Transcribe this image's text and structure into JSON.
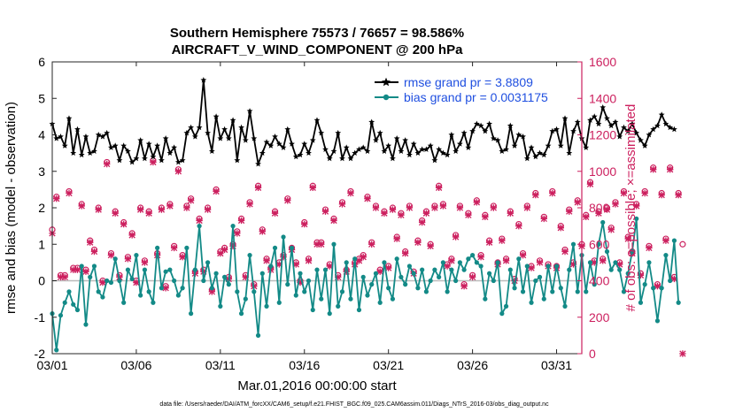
{
  "chart_data": {
    "type": "line",
    "title": "Southern Hemisphere 75573 / 76657 = 98.586%",
    "subtitle": "AIRCRAFT_V_WIND_COMPONENT @ 200 hPa",
    "xlabel": "Mar.01,2016 00:00:00 start",
    "ylabel": "rmse and bias (model - observation)",
    "y2label": "# of obs: o=possible; ×=assimilated",
    "footer": "data file: /Users/raeder/DAI/ATM_forcXX/CAM6_setup/f.e21.FHIST_BGC.f09_025.CAM6assim.011/Diags_NTrS_2016-03/obs_diag_output.nc",
    "xlim": [
      0,
      31.5
    ],
    "ylim": [
      -2,
      6
    ],
    "y2lim": [
      0,
      1600
    ],
    "x_ticks": [
      0,
      5,
      10,
      15,
      20,
      25,
      30
    ],
    "x_tick_labels": [
      "03/01",
      "03/06",
      "03/11",
      "03/16",
      "03/21",
      "03/26",
      "03/31"
    ],
    "y_ticks": [
      -2,
      -1,
      0,
      1,
      2,
      3,
      4,
      5,
      6
    ],
    "y_tick_labels": [
      "-2",
      "-1",
      "0",
      "1",
      "2",
      "3",
      "4",
      "5",
      "6"
    ],
    "y2_ticks": [
      0,
      200,
      400,
      600,
      800,
      1000,
      1200,
      1400,
      1600
    ],
    "y2_tick_labels": [
      "0",
      "200",
      "400",
      "600",
      "800",
      "1000",
      "1200",
      "1400",
      "1600"
    ],
    "x_step_days": 0.25,
    "zero_line": 0,
    "legend_position": "top-right",
    "colors": {
      "rmse": "#000000",
      "bias": "#138a87",
      "counts": "#cc1f5e",
      "legend_text": "#1f4fe0",
      "axis": "#262626",
      "zero_line": "#bbbbbb"
    },
    "series": [
      {
        "name": "rmse grand pr = 3.8809",
        "axis": "left",
        "values": [
          4.3,
          3.9,
          3.95,
          3.7,
          4.45,
          3.5,
          4.15,
          3.45,
          3.95,
          3.5,
          3.55,
          4.0,
          3.95,
          4.05,
          3.65,
          3.7,
          3.3,
          3.7,
          3.55,
          3.25,
          3.35,
          3.85,
          3.35,
          3.75,
          3.4,
          3.7,
          3.3,
          3.9,
          3.5,
          3.65,
          3.25,
          3.3,
          4.05,
          4.2,
          3.95,
          4.2,
          5.5,
          4.05,
          3.55,
          4.5,
          3.9,
          4.15,
          3.9,
          4.4,
          3.3,
          4.2,
          3.85,
          4.65,
          3.9,
          3.2,
          3.5,
          3.8,
          3.7,
          3.95,
          3.75,
          3.65,
          4.15,
          3.75,
          3.4,
          3.45,
          3.75,
          3.5,
          3.85,
          4.4,
          4.05,
          3.6,
          3.35,
          3.55,
          4.05,
          3.35,
          3.65,
          3.35,
          3.5,
          3.6,
          3.65,
          3.55,
          4.35,
          3.85,
          4.05,
          3.55,
          3.7,
          3.35,
          3.9,
          3.55,
          3.85,
          3.45,
          3.75,
          3.5,
          3.6,
          3.6,
          3.7,
          3.3,
          3.6,
          3.5,
          3.45,
          4.0,
          3.55,
          3.75,
          4.05,
          3.65,
          4.1,
          4.3,
          4.25,
          4.1,
          4.3,
          3.9,
          3.85,
          3.55,
          3.6,
          4.25,
          3.7,
          4.0,
          3.95,
          3.35,
          3.65,
          3.4,
          3.5,
          3.45,
          3.7,
          4.1,
          4.15,
          3.7,
          4.45,
          3.5,
          4.1,
          4.35,
          3.9,
          3.65,
          4.4,
          4.5,
          4.3,
          4.75,
          4.45,
          4.25,
          4.35,
          3.95,
          4.2,
          4.1,
          4.3,
          4.05,
          3.85,
          3.7,
          4.0,
          4.15,
          4.25,
          4.55,
          4.3,
          4.2,
          4.15
        ],
        "marker": "star"
      },
      {
        "name": "bias grand pr = 0.0031175",
        "axis": "left",
        "values": [
          -0.9,
          -1.9,
          -0.95,
          -0.6,
          -0.3,
          -0.65,
          -0.8,
          0.4,
          -1.2,
          0.1,
          0.4,
          -0.3,
          -0.45,
          0.0,
          -0.05,
          0.6,
          0.0,
          -0.6,
          0.3,
          0.05,
          0.7,
          -0.4,
          0.3,
          -0.3,
          -0.6,
          0.9,
          -0.2,
          0.25,
          0.3,
          0.0,
          -0.4,
          -0.2,
          0.9,
          -0.9,
          0.3,
          1.5,
          0.0,
          0.5,
          -0.2,
          0.2,
          -0.7,
          0.1,
          -0.1,
          1.5,
          -0.3,
          -0.9,
          -0.5,
          0.7,
          -0.3,
          -1.5,
          0.2,
          -0.7,
          0.4,
          0.9,
          -0.6,
          1.2,
          -0.1,
          0.9,
          -0.4,
          0.2,
          -0.3,
          0.0,
          -0.8,
          0.3,
          -0.5,
          0.3,
          -0.9,
          1.0,
          -0.7,
          -0.3,
          0.5,
          -0.5,
          0.6,
          -0.8,
          0.1,
          -0.4,
          -0.1,
          0.2,
          -0.6,
          0.5,
          -0.2,
          -0.5,
          0.6,
          0.1,
          -0.1,
          0.4,
          0.2,
          -0.2,
          0.3,
          -0.3,
          0.0,
          0.3,
          0.1,
          0.5,
          -0.3,
          0.3,
          0.0,
          0.5,
          0.3,
          0.6,
          0.7,
          0.5,
          0.4,
          -0.5,
          0.2,
          0.0,
          0.5,
          -0.9,
          -0.7,
          0.3,
          -0.2,
          0.6,
          -0.3,
          0.4,
          -0.6,
          0.0,
          0.1,
          -0.5,
          0.4,
          -0.3,
          0.4,
          -0.2,
          -0.7,
          0.3,
          1.0,
          -0.3,
          0.7,
          -0.3,
          0.5,
          -0.1,
          1.0,
          1.6,
          0.8,
          0.3,
          0.5,
          0.3,
          -0.3,
          0.2,
          0.8,
          1.7,
          -0.6,
          -0.1,
          0.5,
          -0.2,
          -1.1,
          -0.2,
          0.7,
          0.0,
          1.1,
          -0.6
        ],
        "marker": "circle"
      }
    ],
    "counts_possible": [
      680,
      860,
      430,
      430,
      890,
      470,
      470,
      820,
      460,
      620,
      570,
      800,
      400,
      1050,
      550,
      780,
      430,
      720,
      530,
      660,
      400,
      800,
      510,
      780,
      1060,
      550,
      800,
      370,
      820,
      590,
      1010,
      540,
      810,
      850,
      450,
      740,
      460,
      800,
      350,
      900,
      560,
      580,
      420,
      600,
      670,
      740,
      430,
      830,
      380,
      920,
      680,
      520,
      470,
      780,
      500,
      540,
      850,
      580,
      500,
      400,
      720,
      520,
      920,
      610,
      610,
      790,
      490,
      740,
      430,
      830,
      460,
      890,
      500,
      520,
      540,
      860,
      610,
      810,
      460,
      780,
      480,
      800,
      640,
      770,
      560,
      810,
      450,
      620,
      730,
      780,
      600,
      810,
      920,
      820,
      490,
      520,
      650,
      810,
      380,
      770,
      430,
      840,
      540,
      760,
      620,
      810,
      500,
      630,
      520,
      780,
      410,
      710,
      550,
      810,
      480,
      880,
      510,
      750,
      490,
      890,
      480,
      700,
      570,
      790,
      500,
      840,
      600,
      760,
      940,
      510,
      780,
      520,
      800,
      690,
      830,
      500,
      890,
      640,
      560,
      820,
      440,
      890,
      590,
      1020,
      380,
      880,
      630,
      1020,
      420,
      880,
      600
    ],
    "counts_assimilated": [
      660,
      850,
      420,
      420,
      880,
      460,
      460,
      810,
      450,
      610,
      560,
      790,
      390,
      1040,
      540,
      770,
      420,
      710,
      520,
      650,
      390,
      790,
      500,
      770,
      1050,
      540,
      790,
      360,
      810,
      580,
      1000,
      530,
      800,
      840,
      440,
      730,
      450,
      790,
      340,
      890,
      550,
      570,
      410,
      590,
      660,
      730,
      420,
      820,
      370,
      910,
      670,
      510,
      460,
      770,
      490,
      530,
      840,
      570,
      490,
      390,
      710,
      510,
      910,
      600,
      600,
      780,
      480,
      730,
      420,
      820,
      450,
      880,
      490,
      510,
      530,
      850,
      600,
      800,
      450,
      770,
      470,
      790,
      630,
      760,
      550,
      800,
      440,
      610,
      720,
      770,
      590,
      800,
      910,
      810,
      480,
      510,
      640,
      800,
      370,
      760,
      420,
      830,
      530,
      750,
      610,
      800,
      490,
      620,
      510,
      770,
      400,
      700,
      540,
      800,
      470,
      870,
      500,
      740,
      480,
      880,
      470,
      690,
      560,
      780,
      490,
      830,
      590,
      750,
      930,
      500,
      770,
      510,
      790,
      680,
      820,
      490,
      880,
      630,
      550,
      810,
      430,
      880,
      580,
      1010,
      370,
      870,
      620,
      1010,
      410,
      870,
      0
    ]
  }
}
